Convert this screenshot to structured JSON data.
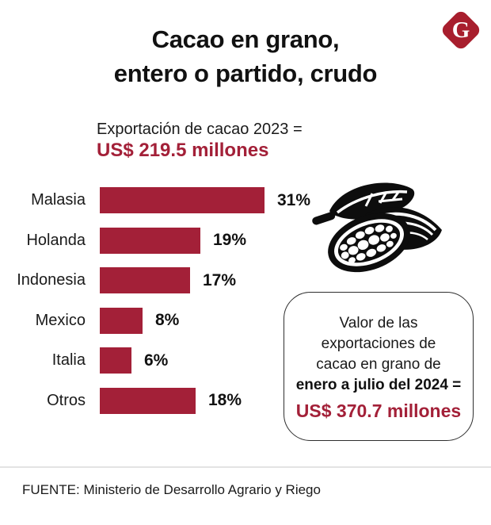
{
  "header": {
    "title_line1": "Cacao en grano,",
    "title_line2": "entero o partido, crudo",
    "logo_letter": "G"
  },
  "subtitle": {
    "line1": "Exportación de cacao 2023 =",
    "value": "US$ 219.5 millones"
  },
  "chart_data": {
    "type": "bar",
    "orientation": "horizontal",
    "title": "Cacao en grano, entero o partido, crudo",
    "subtitle": "Exportación de cacao 2023 = US$ 219.5 millones",
    "categories": [
      "Malasia",
      "Holanda",
      "Indonesia",
      "Mexico",
      "Italia",
      "Otros"
    ],
    "values": [
      31,
      19,
      17,
      8,
      6,
      18
    ],
    "unit": "%",
    "xlim": [
      0,
      31
    ],
    "bar_color": "#A32038",
    "value_labels_shown": true,
    "grid": false,
    "legend": false
  },
  "info_box": {
    "line1": "Valor de las",
    "line2": "exportaciones de",
    "line3": "cacao en grano de",
    "bold_line": "enero a julio del  2024 =",
    "value": "US$ 370.7 millones"
  },
  "footer": {
    "source": "FUENTE: Ministerio de Desarrollo Agrario y Riego"
  },
  "colors": {
    "accent_red": "#A32038",
    "logo_red": "#A81E2D",
    "divider_gray": "#E3E3E3"
  },
  "icons": {
    "cocoa_illustration": "cocoa-pod-and-beans",
    "logo": "gestion-diamond-g"
  }
}
